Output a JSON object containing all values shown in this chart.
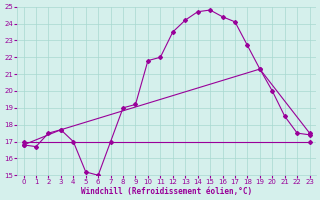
{
  "xlabel": "Windchill (Refroidissement éolien,°C)",
  "background_color": "#d5f0ec",
  "grid_color": "#a8d8d0",
  "line_color": "#990099",
  "xlim": [
    -0.5,
    23.5
  ],
  "ylim": [
    15,
    25
  ],
  "yticks": [
    15,
    16,
    17,
    18,
    19,
    20,
    21,
    22,
    23,
    24,
    25
  ],
  "xticks": [
    0,
    1,
    2,
    3,
    4,
    5,
    6,
    7,
    8,
    9,
    10,
    11,
    12,
    13,
    14,
    15,
    16,
    17,
    18,
    19,
    20,
    21,
    22,
    23
  ],
  "line1_x": [
    0,
    1,
    2,
    3,
    4,
    5,
    6,
    7,
    8,
    9,
    10,
    11,
    12,
    13,
    14,
    15,
    16,
    17,
    18,
    19,
    20,
    21,
    22,
    23
  ],
  "line1_y": [
    16.8,
    16.7,
    17.5,
    17.7,
    17.0,
    15.2,
    15.0,
    17.0,
    19.0,
    19.2,
    21.8,
    22.0,
    23.5,
    24.2,
    24.7,
    24.8,
    24.4,
    24.1,
    22.7,
    21.3,
    20.0,
    18.5,
    17.5,
    17.4
  ],
  "line2_x": [
    0,
    23
  ],
  "line2_y": [
    17.0,
    17.0
  ],
  "line3_x": [
    0,
    3,
    19,
    23
  ],
  "line3_y": [
    16.8,
    17.7,
    21.3,
    17.5
  ]
}
